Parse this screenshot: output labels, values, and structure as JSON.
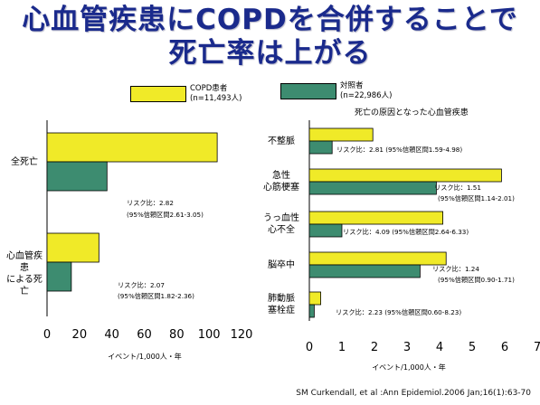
{
  "title_line1": "心血管疾患にCOPDを合併することで",
  "title_line2": "死亡率は上がる",
  "legend": {
    "copd_label": "COPD患者",
    "copd_n": "(n=11,493人)",
    "copd_color": "#f0ea28",
    "control_label": "対照者",
    "control_n": "(n=22,986人)",
    "control_color": "#3d8c70"
  },
  "right_subtitle": "死亡の原因となった心血管疾患",
  "footnote": "SM Curkendall, et al :Ann Epidemiol.2006 Jan;16(1):63-70",
  "chart_data": [
    {
      "type": "bar",
      "orientation": "horizontal",
      "categories": [
        "全死亡",
        "心血管疾患による死亡"
      ],
      "category_lines": [
        [
          "全死亡"
        ],
        [
          "心血管疾患",
          "による死亡"
        ]
      ],
      "series": [
        {
          "name": "COPD患者",
          "values": [
            105,
            32
          ]
        },
        {
          "name": "対照者",
          "values": [
            37,
            15
          ]
        }
      ],
      "annotations": [
        [
          "リスク比：2.82",
          "(95%信頼区間2.61-3.05)"
        ],
        [
          "リスク比：2.07",
          "(95%信頼区間1.82-2.36)"
        ]
      ],
      "xlabel": "イベント/1,000人・年",
      "xlim": [
        0,
        120
      ],
      "xticks": [
        "0",
        "20",
        "40",
        "60",
        "80",
        "100",
        "120"
      ]
    },
    {
      "type": "bar",
      "orientation": "horizontal",
      "categories": [
        "不整脈",
        "急性心筋梗塞",
        "うっ血性心不全",
        "脳卒中",
        "肺動脈塞栓症"
      ],
      "category_lines": [
        [
          "不整脈"
        ],
        [
          "急性",
          "心筋梗塞"
        ],
        [
          "うっ血性",
          "心不全"
        ],
        [
          "脳卒中"
        ],
        [
          "肺動脈",
          "塞栓症"
        ]
      ],
      "series": [
        {
          "name": "COPD患者",
          "values": [
            1.95,
            5.9,
            4.1,
            4.2,
            0.35
          ]
        },
        {
          "name": "対照者",
          "values": [
            0.7,
            3.9,
            1.0,
            3.4,
            0.15
          ]
        }
      ],
      "annotations": [
        [
          "リスク比：2.81 (95%信頼区間1.59-4.98)"
        ],
        [
          "リスク比：1.51",
          "(95%信頼区間1.14-2.01)"
        ],
        [
          "リスク比：4.09 (95%信頼区間2.64-6.33)"
        ],
        [
          "リスク比：1.24",
          "(95%信頼区間0.90-1.71)"
        ],
        [
          "リスク比：2.23 (95%信頼区間0.60-8.23)"
        ]
      ],
      "xlabel": "イベント/1,000人・年",
      "xlim": [
        0,
        7
      ],
      "xticks": [
        "0",
        "1",
        "2",
        "3",
        "4",
        "5",
        "6",
        "7"
      ]
    }
  ]
}
